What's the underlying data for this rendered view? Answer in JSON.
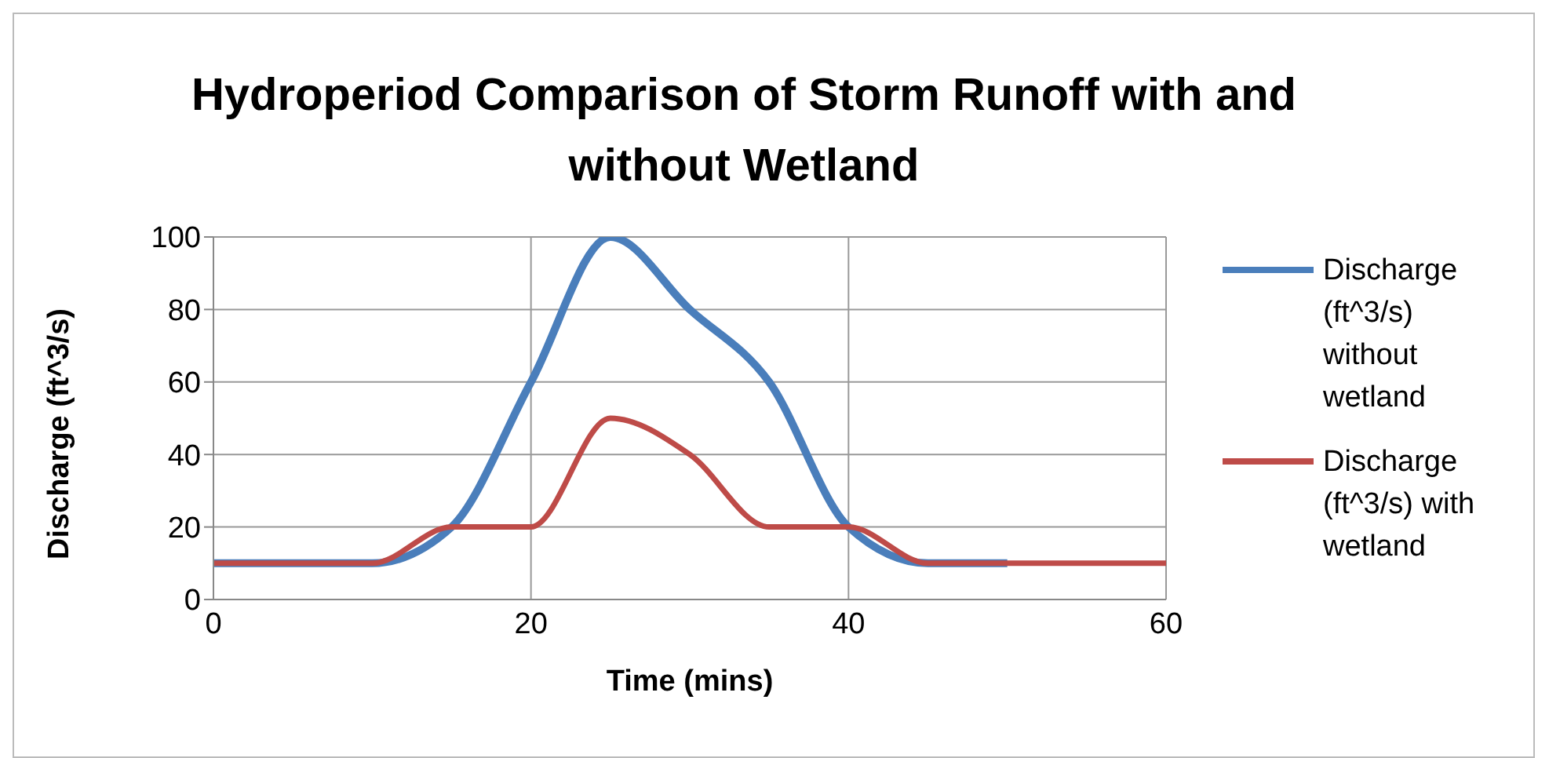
{
  "chart_data": {
    "type": "line",
    "title": "Hydroperiod Comparison of Storm Runoff with and without Wetland",
    "xlabel": "Time (mins)",
    "ylabel": "Discharge (ft^3/s)",
    "x": [
      0,
      5,
      10,
      15,
      20,
      25,
      30,
      35,
      40,
      45,
      50,
      55,
      60
    ],
    "series": [
      {
        "name": "Discharge (ft^3/s) without wetland",
        "color": "#4a7ebb",
        "values": [
          10,
          10,
          10,
          20,
          60,
          100,
          80,
          60,
          20,
          10,
          10,
          null,
          null
        ]
      },
      {
        "name": "Discharge (ft^3/s) with wetland",
        "color": "#be4b48",
        "values": [
          10,
          10,
          10,
          20,
          20,
          50,
          40,
          20,
          20,
          10,
          10,
          10,
          10
        ]
      }
    ],
    "xlim": [
      0,
      60
    ],
    "xticks": [
      0,
      20,
      40,
      60
    ],
    "ylim": [
      0,
      100
    ],
    "yticks": [
      0,
      20,
      40,
      60,
      80,
      100
    ],
    "grid": true,
    "legend": "right",
    "marker": "none",
    "line_style": "solid"
  }
}
